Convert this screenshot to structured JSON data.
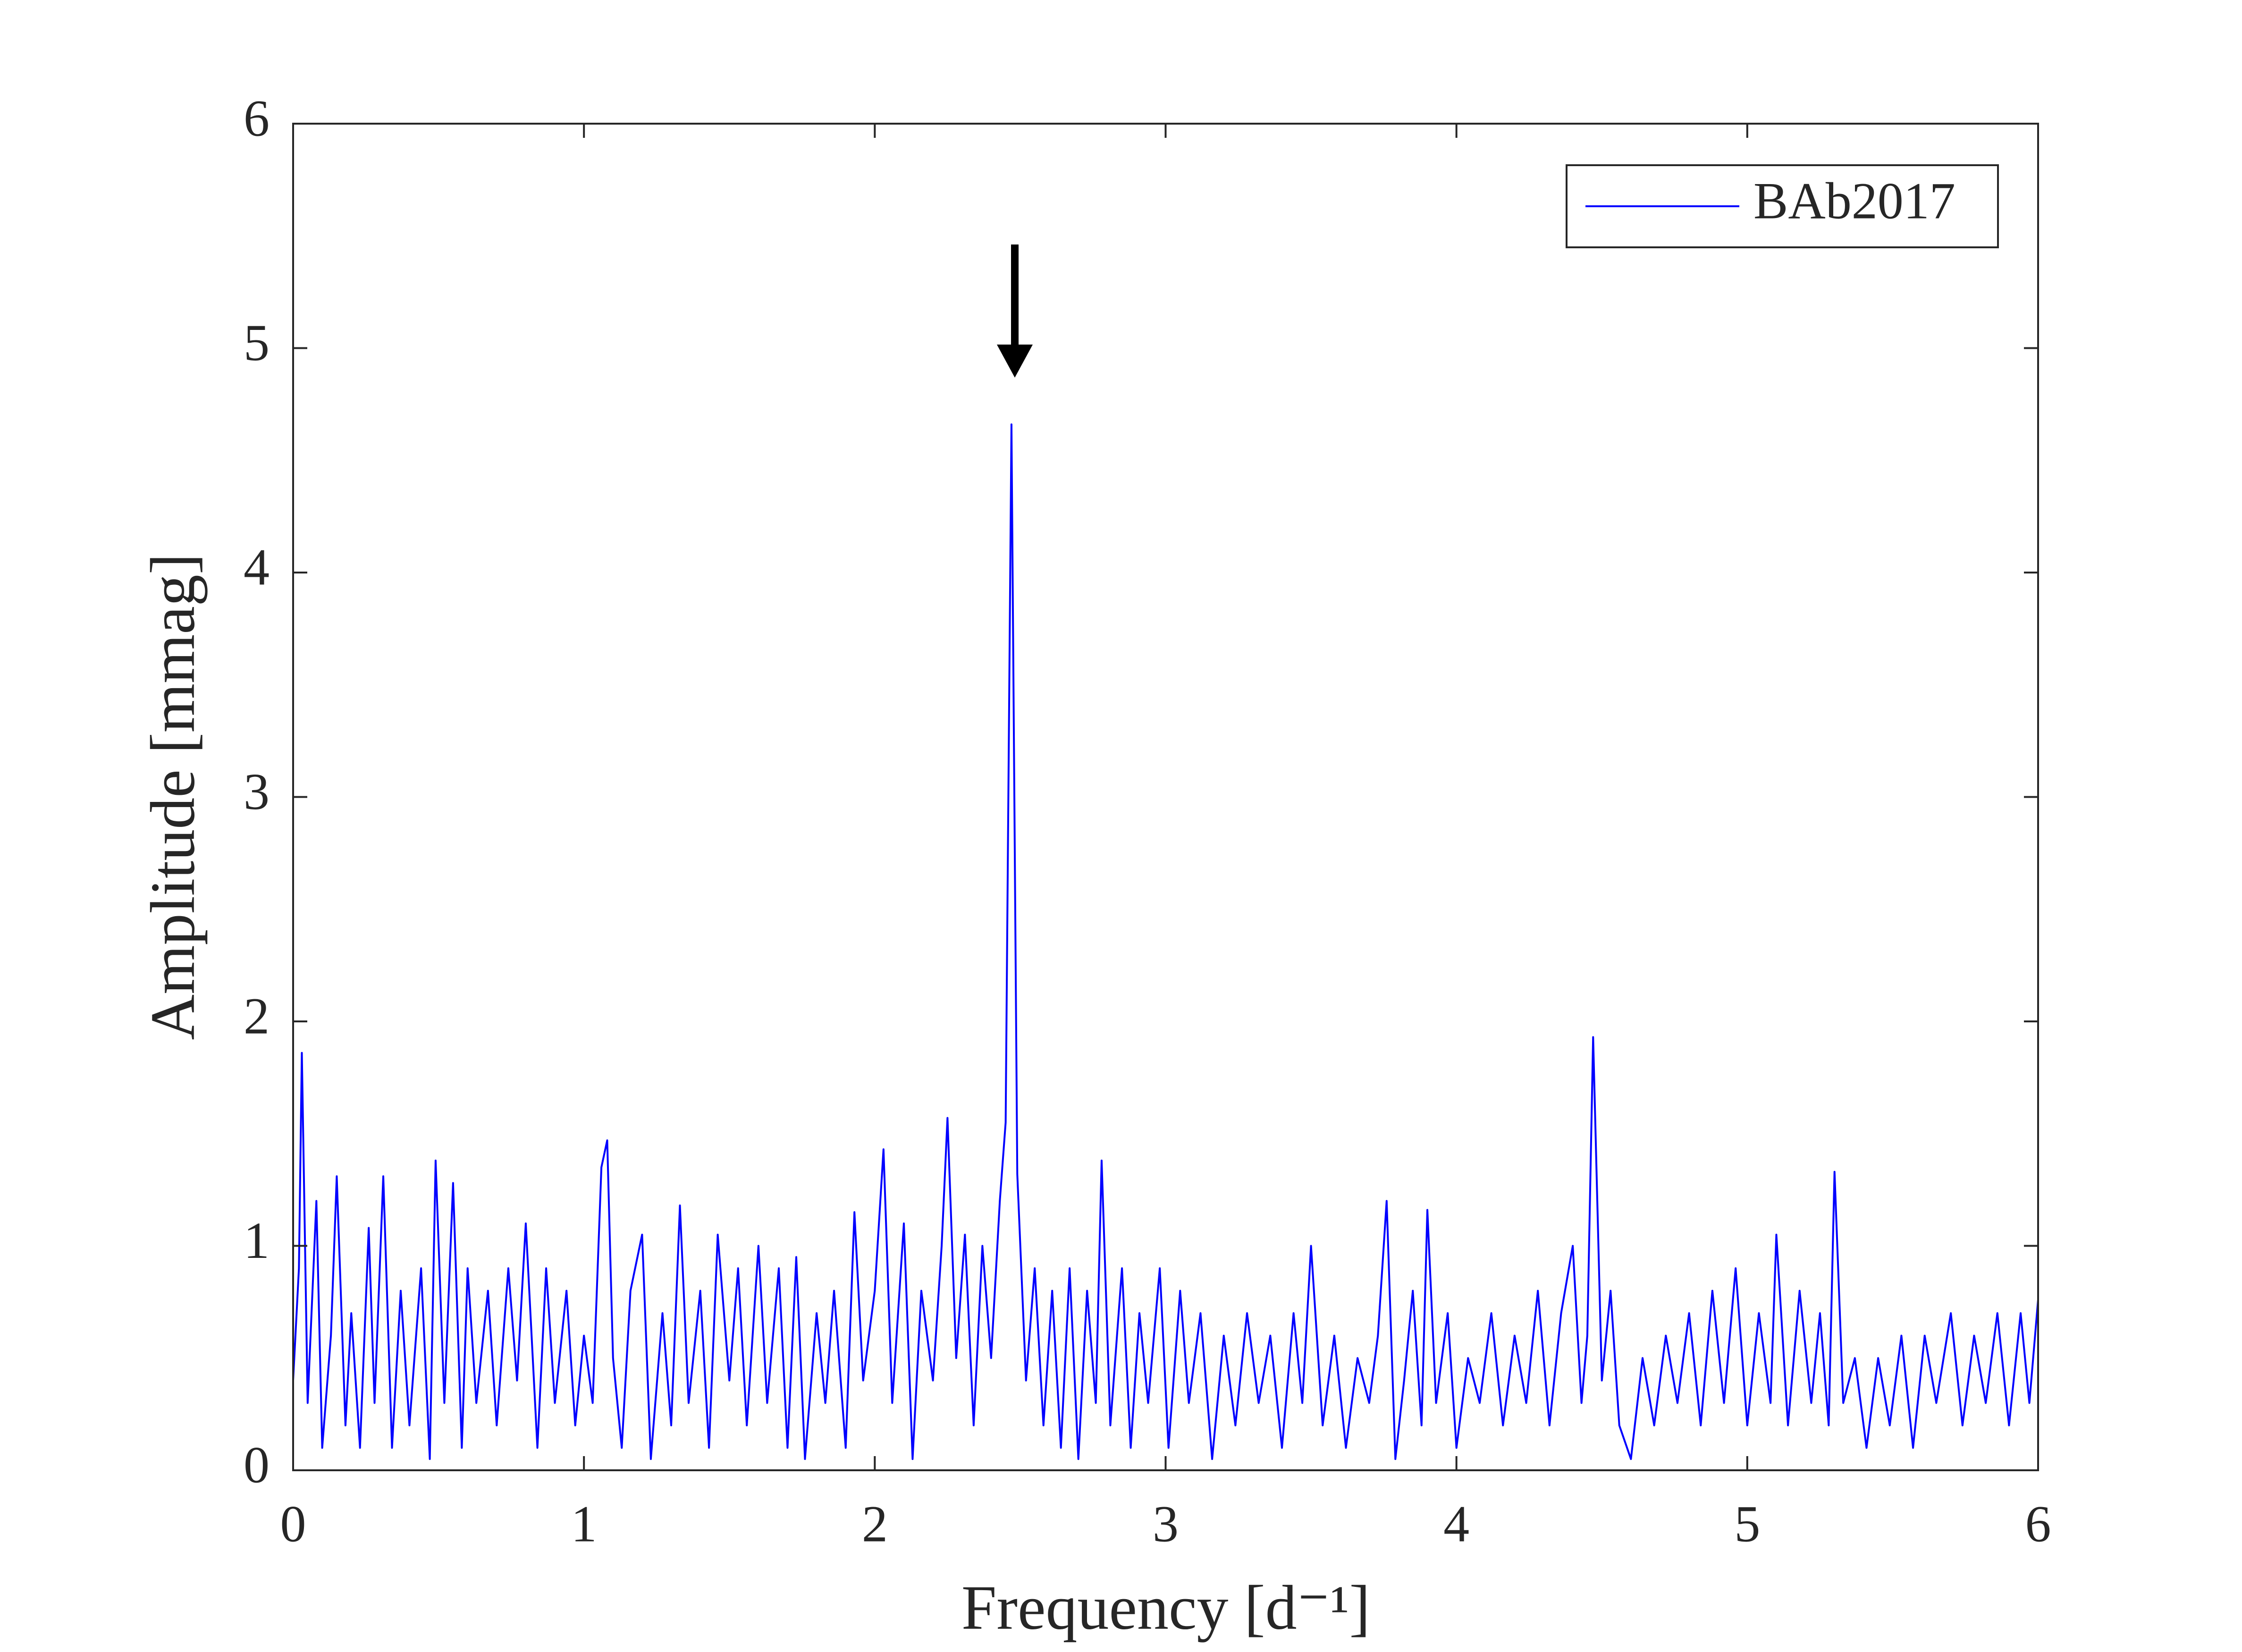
{
  "chart_data": {
    "type": "line",
    "xlabel": "Frequency [d⁻¹]",
    "ylabel": "Amplitude [mmag]",
    "x": [
      0,
      0.02,
      0.03,
      0.05,
      0.08,
      0.1,
      0.13,
      0.15,
      0.18,
      0.2,
      0.23,
      0.26,
      0.28,
      0.31,
      0.34,
      0.37,
      0.4,
      0.44,
      0.47,
      0.49,
      0.52,
      0.55,
      0.58,
      0.6,
      0.63,
      0.67,
      0.7,
      0.74,
      0.77,
      0.8,
      0.84,
      0.87,
      0.9,
      0.94,
      0.97,
      1.0,
      1.03,
      1.06,
      1.08,
      1.1,
      1.13,
      1.16,
      1.2,
      1.23,
      1.27,
      1.3,
      1.33,
      1.36,
      1.4,
      1.43,
      1.46,
      1.5,
      1.53,
      1.56,
      1.6,
      1.63,
      1.67,
      1.7,
      1.73,
      1.76,
      1.8,
      1.83,
      1.86,
      1.9,
      1.93,
      1.96,
      2.0,
      2.03,
      2.06,
      2.1,
      2.13,
      2.16,
      2.2,
      2.23,
      2.25,
      2.28,
      2.31,
      2.34,
      2.37,
      2.4,
      2.43,
      2.45,
      2.47,
      2.49,
      2.52,
      2.55,
      2.58,
      2.61,
      2.64,
      2.67,
      2.7,
      2.73,
      2.76,
      2.78,
      2.81,
      2.85,
      2.88,
      2.91,
      2.94,
      2.98,
      3.01,
      3.05,
      3.08,
      3.12,
      3.16,
      3.2,
      3.24,
      3.28,
      3.32,
      3.36,
      3.4,
      3.44,
      3.47,
      3.5,
      3.54,
      3.58,
      3.62,
      3.66,
      3.7,
      3.73,
      3.76,
      3.79,
      3.82,
      3.85,
      3.88,
      3.9,
      3.93,
      3.97,
      4.0,
      4.04,
      4.08,
      4.12,
      4.16,
      4.2,
      4.24,
      4.28,
      4.32,
      4.36,
      4.4,
      4.43,
      4.45,
      4.47,
      4.5,
      4.53,
      4.56,
      4.6,
      4.64,
      4.68,
      4.72,
      4.76,
      4.8,
      4.84,
      4.88,
      4.92,
      4.96,
      5.0,
      5.04,
      5.08,
      5.1,
      5.14,
      5.18,
      5.22,
      5.25,
      5.28,
      5.3,
      5.33,
      5.37,
      5.41,
      5.45,
      5.49,
      5.53,
      5.57,
      5.61,
      5.65,
      5.7,
      5.74,
      5.78,
      5.82,
      5.86,
      5.9,
      5.94,
      5.97,
      6.0
    ],
    "series": [
      {
        "name": "BAb2017",
        "color": "#0000ff",
        "values": [
          0.4,
          0.9,
          1.86,
          0.3,
          1.2,
          0.1,
          0.6,
          1.31,
          0.2,
          0.7,
          0.1,
          1.08,
          0.3,
          1.31,
          0.1,
          0.8,
          0.2,
          0.9,
          0.05,
          1.38,
          0.3,
          1.28,
          0.1,
          0.9,
          0.3,
          0.8,
          0.2,
          0.9,
          0.4,
          1.1,
          0.1,
          0.9,
          0.3,
          0.8,
          0.2,
          0.6,
          0.3,
          1.35,
          1.47,
          0.5,
          0.1,
          0.8,
          1.05,
          0.05,
          0.7,
          0.2,
          1.18,
          0.3,
          0.8,
          0.1,
          1.05,
          0.4,
          0.9,
          0.2,
          1.0,
          0.3,
          0.9,
          0.1,
          0.95,
          0.05,
          0.7,
          0.3,
          0.8,
          0.1,
          1.15,
          0.4,
          0.8,
          1.43,
          0.3,
          1.1,
          0.05,
          0.8,
          0.4,
          1.0,
          1.57,
          0.5,
          1.05,
          0.2,
          1.0,
          0.5,
          1.2,
          1.55,
          4.66,
          1.32,
          0.4,
          0.9,
          0.2,
          0.8,
          0.1,
          0.9,
          0.05,
          0.8,
          0.3,
          1.38,
          0.2,
          0.9,
          0.1,
          0.7,
          0.3,
          0.9,
          0.1,
          0.8,
          0.3,
          0.7,
          0.05,
          0.6,
          0.2,
          0.7,
          0.3,
          0.6,
          0.1,
          0.7,
          0.3,
          1.0,
          0.2,
          0.6,
          0.1,
          0.5,
          0.3,
          0.6,
          1.2,
          0.05,
          0.4,
          0.8,
          0.2,
          1.16,
          0.3,
          0.7,
          0.1,
          0.5,
          0.3,
          0.7,
          0.2,
          0.6,
          0.3,
          0.8,
          0.2,
          0.7,
          1.0,
          0.3,
          0.6,
          1.93,
          0.4,
          0.8,
          0.2,
          0.05,
          0.5,
          0.2,
          0.6,
          0.3,
          0.7,
          0.2,
          0.8,
          0.3,
          0.9,
          0.2,
          0.7,
          0.3,
          1.05,
          0.2,
          0.8,
          0.3,
          0.7,
          0.2,
          1.33,
          0.3,
          0.5,
          0.1,
          0.5,
          0.2,
          0.6,
          0.1,
          0.6,
          0.3,
          0.7,
          0.2,
          0.6,
          0.3,
          0.7,
          0.2,
          0.7,
          0.3,
          0.76
        ]
      }
    ],
    "xlim": [
      0,
      6
    ],
    "xticks": [
      0,
      1,
      2,
      3,
      4,
      5,
      6
    ],
    "ylim": [
      0,
      6
    ],
    "yticks": [
      0,
      1,
      2,
      3,
      4,
      5,
      6
    ],
    "legend": "northeast"
  }
}
